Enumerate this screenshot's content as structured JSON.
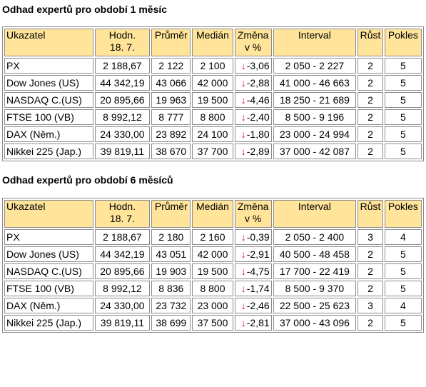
{
  "tables": [
    {
      "title": "Odhad expertů pro období 1 měsíc",
      "headers": {
        "ukazatel": "Ukazatel",
        "hodn_1": "Hodn.",
        "hodn_2": "18. 7.",
        "prumer": "Průměr",
        "median": "Medián",
        "zmena_1": "Změna",
        "zmena_2": "v %",
        "interval": "Interval",
        "rust": "Růst",
        "pokles": "Pokles"
      },
      "rows": [
        {
          "name": "PX",
          "value": "2 188,67",
          "avg": "2 122",
          "median": "2 100",
          "arrow": "↓",
          "change": "-3,06",
          "interval": "2 050 - 2 227",
          "up": "2",
          "down": "5"
        },
        {
          "name": "Dow Jones (US)",
          "value": "44 342,19",
          "avg": "43 066",
          "median": "42 000",
          "arrow": "↓",
          "change": "-2,88",
          "interval": "41 000 - 46 663",
          "up": "2",
          "down": "5"
        },
        {
          "name": "NASDAQ C.(US)",
          "value": "20 895,66",
          "avg": "19 963",
          "median": "19 500",
          "arrow": "↓",
          "change": "-4,46",
          "interval": "18 250 - 21 689",
          "up": "2",
          "down": "5"
        },
        {
          "name": "FTSE 100 (VB)",
          "value": "8 992,12",
          "avg": "8 777",
          "median": "8 800",
          "arrow": "↓",
          "change": "-2,40",
          "interval": "8 500 - 9 196",
          "up": "2",
          "down": "5"
        },
        {
          "name": "DAX (Něm.)",
          "value": "24 330,00",
          "avg": "23 892",
          "median": "24 100",
          "arrow": "↓",
          "change": "-1,80",
          "interval": "23 000 - 24 994",
          "up": "2",
          "down": "5"
        },
        {
          "name": "Nikkei 225 (Jap.)",
          "value": "39 819,11",
          "avg": "38 670",
          "median": "37 700",
          "arrow": "↓",
          "change": "-2,89",
          "interval": "37 000 - 42 087",
          "up": "2",
          "down": "5"
        }
      ]
    },
    {
      "title": "Odhad expertů pro období 6 měsíců",
      "headers": {
        "ukazatel": "Ukazatel",
        "hodn_1": "Hodn.",
        "hodn_2": "18. 7.",
        "prumer": "Průměr",
        "median": "Medián",
        "zmena_1": "Změna",
        "zmena_2": "v %",
        "interval": "Interval",
        "rust": "Růst",
        "pokles": "Pokles"
      },
      "rows": [
        {
          "name": "PX",
          "value": "2 188,67",
          "avg": "2 180",
          "median": "2 160",
          "arrow": "↓",
          "change": "-0,39",
          "interval": "2 050 - 2 400",
          "up": "3",
          "down": "4"
        },
        {
          "name": "Dow Jones (US)",
          "value": "44 342,19",
          "avg": "43 051",
          "median": "42 000",
          "arrow": "↓",
          "change": "-2,91",
          "interval": "40 500 - 48 458",
          "up": "2",
          "down": "5"
        },
        {
          "name": "NASDAQ C.(US)",
          "value": "20 895,66",
          "avg": "19 903",
          "median": "19 500",
          "arrow": "↓",
          "change": "-4,75",
          "interval": "17 700 - 22 419",
          "up": "2",
          "down": "5"
        },
        {
          "name": "FTSE 100 (VB)",
          "value": "8 992,12",
          "avg": "8 836",
          "median": "8 800",
          "arrow": "↓",
          "change": "-1,74",
          "interval": "8 500 - 9 370",
          "up": "2",
          "down": "5"
        },
        {
          "name": "DAX (Něm.)",
          "value": "24 330,00",
          "avg": "23 732",
          "median": "23 000",
          "arrow": "↓",
          "change": "-2,46",
          "interval": "22 500 - 25 623",
          "up": "3",
          "down": "4"
        },
        {
          "name": "Nikkei 225 (Jap.)",
          "value": "39 819,11",
          "avg": "38 699",
          "median": "37 500",
          "arrow": "↓",
          "change": "-2,81",
          "interval": "37 000 - 43 096",
          "up": "2",
          "down": "5"
        }
      ]
    }
  ]
}
